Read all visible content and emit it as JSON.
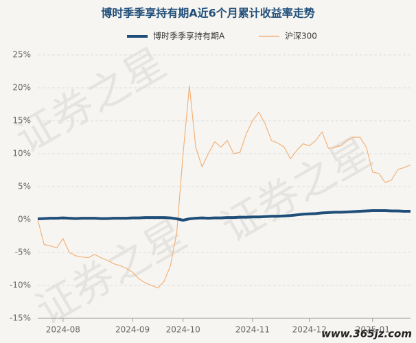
{
  "chart_data": {
    "type": "line",
    "title": "博时季季享持有期A近6个月累计收益率走势",
    "watermark": "证券之星",
    "site": "www.365jz.com",
    "categories": [
      null,
      null,
      null,
      null,
      "2024-08",
      null,
      null,
      null,
      null,
      null,
      null,
      null,
      null,
      null,
      null,
      "2024-09",
      null,
      null,
      null,
      null,
      null,
      null,
      null,
      "2024-10",
      null,
      null,
      null,
      null,
      null,
      null,
      null,
      null,
      null,
      null,
      "2024-11",
      null,
      null,
      null,
      null,
      null,
      null,
      null,
      null,
      "2024-12",
      null,
      null,
      null,
      null,
      null,
      null,
      null,
      null,
      null,
      "2025-01",
      null,
      null,
      null,
      null,
      null,
      null
    ],
    "series": [
      {
        "name": "博时季季享持有期A",
        "color": "#1f4e79",
        "width": 4,
        "values": [
          0.1,
          0.15,
          0.2,
          0.2,
          0.25,
          0.2,
          0.15,
          0.2,
          0.2,
          0.2,
          0.15,
          0.15,
          0.2,
          0.2,
          0.2,
          0.25,
          0.25,
          0.3,
          0.3,
          0.3,
          0.3,
          0.25,
          0.1,
          -0.1,
          0.1,
          0.2,
          0.25,
          0.2,
          0.25,
          0.25,
          0.3,
          0.3,
          0.35,
          0.35,
          0.4,
          0.4,
          0.45,
          0.5,
          0.5,
          0.55,
          0.6,
          0.7,
          0.8,
          0.85,
          0.9,
          1.0,
          1.05,
          1.1,
          1.1,
          1.15,
          1.2,
          1.25,
          1.3,
          1.35,
          1.35,
          1.35,
          1.3,
          1.3,
          1.25,
          1.25
        ]
      },
      {
        "name": "沪深300",
        "color": "#f2b27a",
        "width": 1.2,
        "values": [
          0,
          -3.8,
          -4,
          -4.3,
          -2.9,
          -5,
          -5.5,
          -5.7,
          -5.8,
          -5.3,
          -5.8,
          -6.2,
          -6.7,
          -7,
          -7.4,
          -8,
          -9,
          -9.6,
          -10,
          -10.4,
          -9.4,
          -7,
          -2,
          10,
          20.3,
          11,
          8,
          10,
          11.8,
          11,
          12,
          10,
          10.2,
          13,
          15,
          16.3,
          14.5,
          12,
          11.6,
          11,
          9.2,
          10.5,
          11.5,
          11.2,
          12,
          13.3,
          10.8,
          11,
          11.2,
          12,
          12.5,
          12.5,
          11,
          7.2,
          7,
          5.6,
          6,
          7.6,
          7.9,
          8.3
        ]
      }
    ],
    "ylim": [
      -15,
      25
    ],
    "yticks": [
      {
        "value": -15,
        "label": "-15%"
      },
      {
        "value": -10,
        "label": "-10%"
      },
      {
        "value": -5,
        "label": "-5%"
      },
      {
        "value": 0,
        "label": "0%"
      },
      {
        "value": 5,
        "label": "5%"
      },
      {
        "value": 10,
        "label": "10%"
      },
      {
        "value": 15,
        "label": "15%"
      },
      {
        "value": 20,
        "label": "20%"
      },
      {
        "value": 25,
        "label": "25%"
      }
    ],
    "grid": true
  }
}
